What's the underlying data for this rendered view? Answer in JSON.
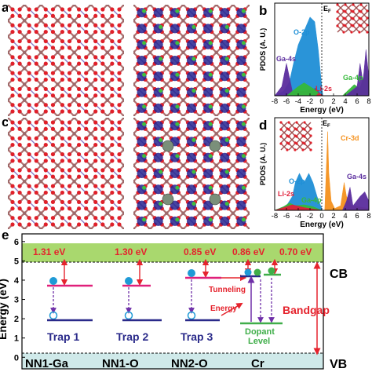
{
  "panels": {
    "a": "a",
    "b": "b",
    "c": "c",
    "d": "d",
    "e": "e"
  },
  "pdos_b": {
    "xlabel": "Energy (eV)",
    "ylabel": "PDOS (A. U.)",
    "fermi": "E",
    "fermi_sub": "F",
    "xticks": [
      "-8",
      "-6",
      "-4",
      "-2",
      "0",
      "2",
      "4",
      "6",
      "8"
    ],
    "labels": {
      "o2p": "O-2p",
      "ga4s": "Ga-4s",
      "li2s": "Li-2s",
      "ga4p": "Ga-4p"
    },
    "colors": {
      "o2p": "#1f8fd6",
      "ga4s": "#5b2d9e",
      "li2s": "#e0203a",
      "ga4p": "#35b93a"
    }
  },
  "pdos_d": {
    "xlabel": "Energy (eV)",
    "ylabel": "PDOS (A. U.)",
    "fermi": "E",
    "fermi_sub": "F",
    "xticks": [
      "-8",
      "-6",
      "-4",
      "-2",
      "0",
      "2",
      "4",
      "6",
      "8"
    ],
    "labels": {
      "o2p": "O-2p",
      "li2s": "Li-2s",
      "ga4p": "Ga-4p",
      "cr3d": "Cr-3d",
      "ga4s": "Ga-4s"
    },
    "colors": {
      "o2p": "#1f8fd6",
      "ga4s": "#5b2d9e",
      "li2s": "#e0203a",
      "ga4p": "#35b93a",
      "cr3d": "#f5921e"
    }
  },
  "band": {
    "ylabel": "Energy (eV)",
    "yticks": [
      "0",
      "1",
      "2",
      "3",
      "4",
      "5",
      "6"
    ],
    "cb": "CB",
    "vb": "VB",
    "gaps": [
      "1.31 eV",
      "1.30 eV",
      "0.85 eV",
      "0.86 eV",
      "0.70 eV"
    ],
    "traps": [
      "Trap 1",
      "Trap 2",
      "Trap 3"
    ],
    "tunneling": "Tunneling",
    "energy": "Energy",
    "dopant": "Dopant",
    "level": "Level",
    "bandgap": "Bandgap",
    "categories": [
      "NN1-Ga",
      "NN1-O",
      "NN2-O",
      "Cr"
    ],
    "colors": {
      "cb": "#a9d86e",
      "vb": "#cfe9e9",
      "red": "#e5232d",
      "trap": "#2a2a8a",
      "pink": "#e0207a",
      "green": "#3fae49",
      "purple": "#6f2fa8"
    }
  }
}
